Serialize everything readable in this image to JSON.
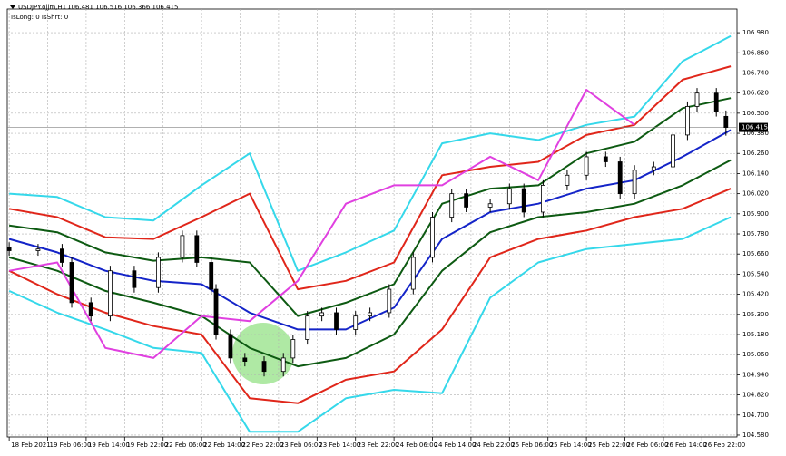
{
  "chart_data": {
    "type": "candlestick",
    "title": "USDJPY.ojjm,H1",
    "subtitle": "106.481 106.516 106.366 106.415",
    "info": "IsLong: 0 IsShrt: 0",
    "ylim": [
      104.569,
      107.121
    ],
    "yticks": [
      {
        "value": 106.98,
        "label": "106.980"
      },
      {
        "value": 106.86,
        "label": "106.860"
      },
      {
        "value": 106.74,
        "label": "106.740"
      },
      {
        "value": 106.62,
        "label": "106.620"
      },
      {
        "value": 106.5,
        "label": "106.500"
      },
      {
        "value": 106.38,
        "label": "106.380"
      },
      {
        "value": 106.26,
        "label": "106.260"
      },
      {
        "value": 106.14,
        "label": "106.140"
      },
      {
        "value": 106.02,
        "label": "106.020"
      },
      {
        "value": 105.9,
        "label": "105.900"
      },
      {
        "value": 105.78,
        "label": "105.780"
      },
      {
        "value": 105.66,
        "label": "105.660"
      },
      {
        "value": 105.54,
        "label": "105.540"
      },
      {
        "value": 105.42,
        "label": "105.420"
      },
      {
        "value": 105.3,
        "label": "105.300"
      },
      {
        "value": 105.18,
        "label": "105.180"
      },
      {
        "value": 105.06,
        "label": "105.060"
      },
      {
        "value": 104.94,
        "label": "104.940"
      },
      {
        "value": 104.82,
        "label": "104.820"
      },
      {
        "value": 104.7,
        "label": "104.700"
      },
      {
        "value": 104.58,
        "label": "104.580"
      }
    ],
    "xlim": [
      -0.4,
      151.3
    ],
    "xticks": [
      {
        "value": 0,
        "label": "18 Feb 2021"
      },
      {
        "value": 8,
        "label": "19 Feb 06:00"
      },
      {
        "value": 16,
        "label": "19 Feb 14:00"
      },
      {
        "value": 24,
        "label": "19 Feb 22:00"
      },
      {
        "value": 32,
        "label": "22 Feb 06:00"
      },
      {
        "value": 40,
        "label": "22 Feb 14:00"
      },
      {
        "value": 48,
        "label": "22 Feb 22:00"
      },
      {
        "value": 56,
        "label": "23 Feb 06:00"
      },
      {
        "value": 64,
        "label": "23 Feb 14:00"
      },
      {
        "value": 72,
        "label": "23 Feb 22:00"
      },
      {
        "value": 80,
        "label": "24 Feb 06:00"
      },
      {
        "value": 88,
        "label": "24 Feb 14:00"
      },
      {
        "value": 96,
        "label": "24 Feb 22:00"
      },
      {
        "value": 104,
        "label": "25 Feb 06:00"
      },
      {
        "value": 112,
        "label": "25 Feb 14:00"
      },
      {
        "value": 120,
        "label": "25 Feb 22:00"
      },
      {
        "value": 128,
        "label": "26 Feb 06:00"
      },
      {
        "value": 136,
        "label": "26 Feb 14:00"
      },
      {
        "value": 144,
        "label": "26 Feb 22:00"
      }
    ],
    "grid": true,
    "last_price": 106.415,
    "candles": {
      "up_color": "#ffffff",
      "down_color": "#000000",
      "x": [
        0,
        6,
        11,
        13,
        17,
        21,
        26,
        31,
        36,
        39,
        42,
        43,
        46,
        49,
        53,
        57,
        59,
        62,
        65,
        68,
        72,
        75,
        79,
        84,
        88,
        92,
        95,
        100,
        104,
        107,
        111,
        116,
        120,
        124,
        127,
        130,
        134,
        138,
        141,
        143,
        147,
        149
      ],
      "open": [
        105.7,
        105.68,
        105.69,
        105.61,
        105.37,
        105.29,
        105.56,
        105.46,
        105.64,
        105.77,
        105.61,
        105.45,
        105.18,
        105.04,
        105.02,
        104.96,
        105.04,
        105.15,
        105.29,
        105.31,
        105.21,
        105.29,
        105.31,
        105.45,
        105.64,
        105.88,
        106.02,
        105.94,
        105.96,
        106.05,
        105.91,
        106.07,
        106.13,
        106.24,
        106.21,
        106.02,
        106.16,
        106.18,
        106.37,
        106.54,
        106.62,
        106.481
      ],
      "high": [
        105.73,
        105.72,
        105.72,
        105.64,
        105.4,
        105.59,
        105.59,
        105.67,
        105.8,
        105.8,
        105.64,
        105.48,
        105.21,
        105.07,
        105.05,
        105.07,
        105.18,
        105.32,
        105.34,
        105.34,
        105.32,
        105.34,
        105.48,
        105.67,
        105.91,
        106.05,
        106.05,
        105.99,
        106.08,
        106.08,
        106.1,
        106.16,
        106.27,
        106.27,
        106.24,
        106.19,
        106.21,
        106.4,
        106.57,
        106.65,
        106.65,
        106.516
      ],
      "low": [
        105.65,
        105.65,
        105.58,
        105.34,
        105.26,
        105.26,
        105.43,
        105.43,
        105.61,
        105.58,
        105.42,
        105.15,
        105.01,
        104.99,
        104.93,
        104.93,
        105.01,
        105.12,
        105.26,
        105.18,
        105.18,
        105.26,
        105.28,
        105.42,
        105.61,
        105.85,
        105.91,
        105.91,
        105.93,
        105.88,
        105.88,
        106.04,
        106.1,
        106.18,
        105.99,
        105.99,
        106.13,
        106.15,
        106.34,
        106.51,
        106.48,
        106.366
      ],
      "close": [
        105.68,
        105.69,
        105.61,
        105.37,
        105.29,
        105.56,
        105.46,
        105.64,
        105.77,
        105.61,
        105.45,
        105.18,
        105.04,
        105.02,
        104.96,
        105.04,
        105.15,
        105.29,
        105.31,
        105.21,
        105.29,
        105.31,
        105.45,
        105.64,
        105.88,
        106.02,
        105.94,
        105.96,
        106.05,
        105.91,
        106.07,
        106.13,
        106.24,
        106.21,
        106.02,
        106.16,
        106.18,
        106.37,
        106.54,
        106.62,
        106.51,
        106.415
      ]
    },
    "overlay_x": [
      0,
      10,
      20,
      30,
      40,
      50,
      60,
      70,
      80,
      90,
      100,
      110,
      120,
      130,
      140,
      150
    ],
    "overlays": [
      {
        "color": "#35d8ea",
        "values": [
          106.02,
          106.0,
          105.88,
          105.86,
          106.07,
          106.26,
          105.56,
          105.67,
          105.8,
          106.32,
          106.38,
          106.34,
          106.43,
          106.48,
          106.81,
          106.96
        ]
      },
      {
        "color": "#e0261a",
        "values": [
          105.93,
          105.88,
          105.76,
          105.75,
          105.88,
          106.02,
          105.45,
          105.5,
          105.61,
          106.13,
          106.18,
          106.21,
          106.37,
          106.43,
          106.7,
          106.78
        ]
      },
      {
        "color": "#0d5a12",
        "values": [
          105.83,
          105.79,
          105.67,
          105.62,
          105.64,
          105.61,
          105.29,
          105.37,
          105.48,
          105.96,
          106.05,
          106.07,
          106.26,
          106.33,
          106.53,
          106.59
        ]
      },
      {
        "color": "#1424c8",
        "values": [
          105.75,
          105.67,
          105.56,
          105.5,
          105.48,
          105.31,
          105.21,
          105.21,
          105.34,
          105.75,
          105.91,
          105.96,
          106.05,
          106.1,
          106.24,
          106.4
        ]
      },
      {
        "color": "#0d5a12",
        "values": [
          105.64,
          105.56,
          105.44,
          105.37,
          105.29,
          105.1,
          104.99,
          105.04,
          105.18,
          105.56,
          105.79,
          105.88,
          105.91,
          105.96,
          106.07,
          106.22
        ]
      },
      {
        "color": "#e0261a",
        "values": [
          105.56,
          105.42,
          105.31,
          105.23,
          105.18,
          104.8,
          104.77,
          104.91,
          104.96,
          105.21,
          105.64,
          105.75,
          105.8,
          105.88,
          105.93,
          106.05
        ]
      },
      {
        "color": "#35d8ea",
        "values": [
          105.44,
          105.31,
          105.21,
          105.1,
          105.07,
          104.6,
          104.6,
          104.8,
          104.85,
          104.83,
          105.4,
          105.61,
          105.69,
          105.72,
          105.75,
          105.88
        ]
      },
      {
        "color": "#e040e0",
        "values": [
          105.56,
          105.61,
          105.1,
          105.04,
          105.29,
          105.26,
          105.5,
          105.96,
          106.07,
          106.07,
          106.24,
          106.1,
          106.64,
          106.43,
          null,
          null
        ]
      }
    ]
  }
}
